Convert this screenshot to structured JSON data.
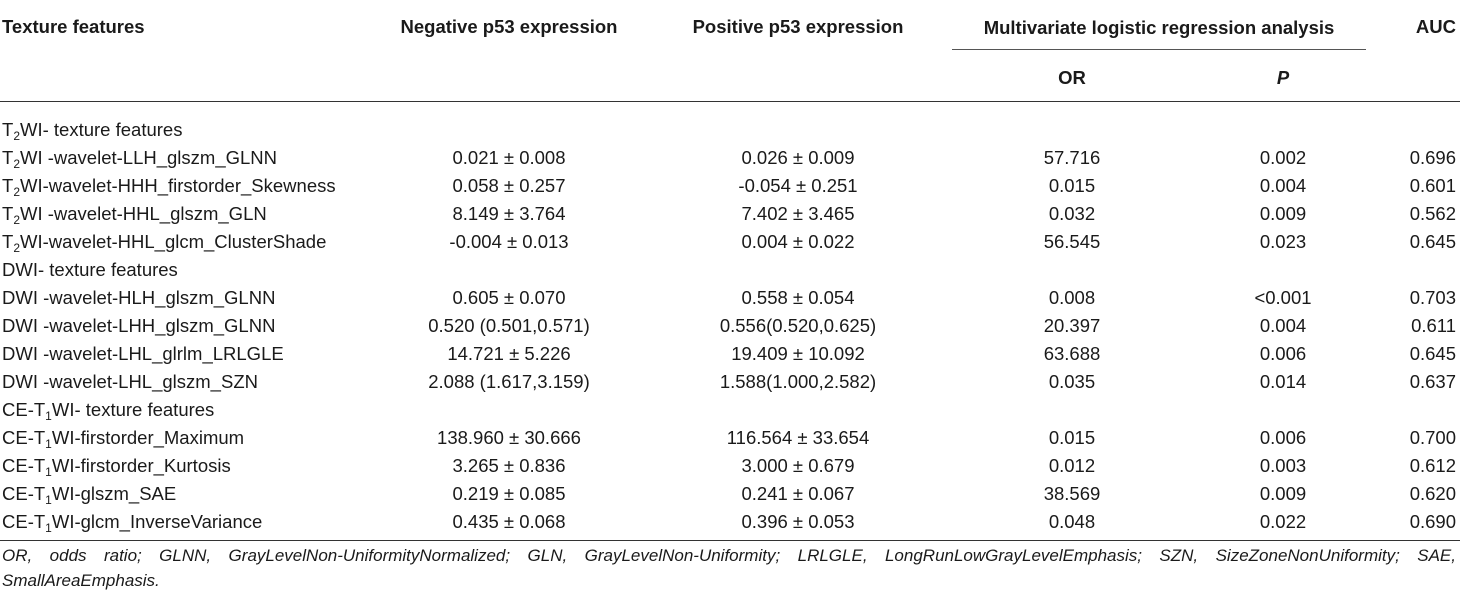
{
  "header": {
    "col0": "Texture features",
    "col1": "Negative p53 expression",
    "col2": "Positive p53 expression",
    "col3": "Multivariate logistic regression analysis",
    "col5": "AUC",
    "sub_or": "OR",
    "sub_p": "P"
  },
  "sections": [
    {
      "head": {
        "pre": "T",
        "sub": "2",
        "post": "WI- texture features"
      },
      "rows": [
        {
          "pre": "T",
          "sub": "2",
          "post": "WI -wavelet-LLH_glszm_GLNN",
          "neg": "0.021 ± 0.008",
          "pos": "0.026 ± 0.009",
          "or": "57.716",
          "p": "0.002",
          "auc": "0.696"
        },
        {
          "pre": "T",
          "sub": "2",
          "post": "WI-wavelet-HHH_firstorder_Skewness",
          "neg": "0.058 ± 0.257",
          "pos": "-0.054 ± 0.251",
          "or": "0.015",
          "p": "0.004",
          "auc": "0.601"
        },
        {
          "pre": "T",
          "sub": "2",
          "post": "WI -wavelet-HHL_glszm_GLN",
          "neg": "8.149 ± 3.764",
          "pos": "7.402 ± 3.465",
          "or": "0.032",
          "p": "0.009",
          "auc": "0.562"
        },
        {
          "pre": "T",
          "sub": "2",
          "post": "WI-wavelet-HHL_glcm_ClusterShade",
          "neg": "-0.004 ± 0.013",
          "pos": "0.004 ± 0.022",
          "or": "56.545",
          "p": "0.023",
          "auc": "0.645"
        }
      ]
    },
    {
      "head": {
        "pre": "DWI- texture features",
        "sub": "",
        "post": ""
      },
      "rows": [
        {
          "pre": "DWI -wavelet-HLH_glszm_GLNN",
          "sub": "",
          "post": "",
          "neg": "0.605 ± 0.070",
          "pos": "0.558 ± 0.054",
          "or": "0.008",
          "p": "<0.001",
          "auc": "0.703"
        },
        {
          "pre": "DWI -wavelet-LHH_glszm_GLNN",
          "sub": "",
          "post": "",
          "neg": "0.520 (0.501,0.571)",
          "pos": "0.556(0.520,0.625)",
          "or": "20.397",
          "p": "0.004",
          "auc": "0.611"
        },
        {
          "pre": "DWI -wavelet-LHL_glrlm_LRLGLE",
          "sub": "",
          "post": "",
          "neg": "14.721 ± 5.226",
          "pos": "19.409 ± 10.092",
          "or": "63.688",
          "p": "0.006",
          "auc": "0.645"
        },
        {
          "pre": "DWI -wavelet-LHL_glszm_SZN",
          "sub": "",
          "post": "",
          "neg": "2.088 (1.617,3.159)",
          "pos": "1.588(1.000,2.582)",
          "or": "0.035",
          "p": "0.014",
          "auc": "0.637"
        }
      ]
    },
    {
      "head": {
        "pre": "CE-T",
        "sub": "1",
        "post": "WI- texture features"
      },
      "rows": [
        {
          "pre": "CE-T",
          "sub": "1",
          "post": "WI-firstorder_Maximum",
          "neg": "138.960 ± 30.666",
          "pos": "116.564 ± 33.654",
          "or": "0.015",
          "p": "0.006",
          "auc": "0.700"
        },
        {
          "pre": "CE-T",
          "sub": "1",
          "post": "WI-firstorder_Kurtosis",
          "neg": "3.265 ± 0.836",
          "pos": "3.000 ± 0.679",
          "or": "0.012",
          "p": "0.003",
          "auc": "0.612"
        },
        {
          "pre": "CE-T",
          "sub": "1",
          "post": "WI-glszm_SAE",
          "neg": "0.219 ± 0.085",
          "pos": "0.241 ± 0.067",
          "or": "38.569",
          "p": "0.009",
          "auc": "0.620"
        },
        {
          "pre": "CE-T",
          "sub": "1",
          "post": "WI-glcm_InverseVariance",
          "neg": "0.435 ± 0.068",
          "pos": "0.396 ± 0.053",
          "or": "0.048",
          "p": "0.022",
          "auc": "0.690"
        }
      ]
    }
  ],
  "footnote": "OR, odds ratio; GLNN, GrayLevelNon-UniformityNormalized; GLN, GrayLevelNon-Uniformity; LRLGLE, LongRunLowGrayLevelEmphasis; SZN, SizeZoneNonUniformity; SAE, SmallAreaEmphasis."
}
